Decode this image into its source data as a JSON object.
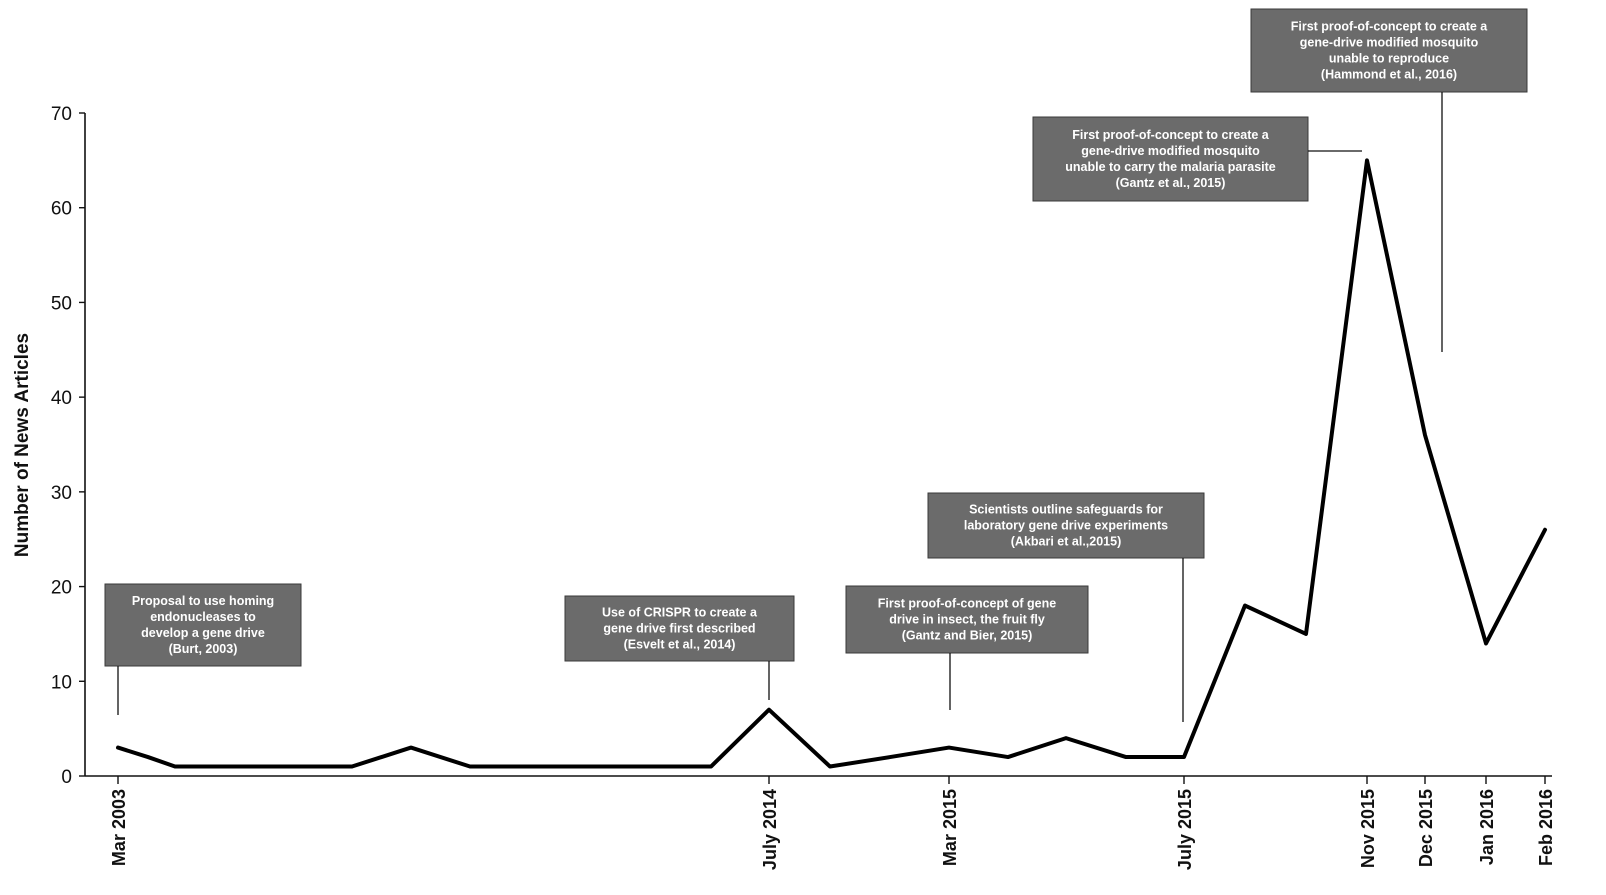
{
  "chart_data": {
    "type": "line",
    "title": "",
    "ylabel": "Number of News Articles",
    "xlabel": "",
    "ylim": [
      0,
      70
    ],
    "yticks": [
      0,
      10,
      20,
      30,
      40,
      50,
      60,
      70
    ],
    "grid": false,
    "series": [
      {
        "color": "#000000",
        "points": [
          {
            "i": 0,
            "y": 3
          },
          {
            "i": 1,
            "y": 2
          },
          {
            "i": 2,
            "y": 1
          },
          {
            "i": 3,
            "y": 1
          },
          {
            "i": 4,
            "y": 1
          },
          {
            "i": 5,
            "y": 1
          },
          {
            "i": 6,
            "y": 1
          },
          {
            "i": 7,
            "y": 3
          },
          {
            "i": 8,
            "y": 1
          },
          {
            "i": 9,
            "y": 1
          },
          {
            "i": 10,
            "y": 1
          },
          {
            "i": 11,
            "y": 1
          },
          {
            "i": 12,
            "y": 1
          },
          {
            "i": 13,
            "y": 7
          },
          {
            "i": 14,
            "y": 1
          },
          {
            "i": 15,
            "y": 2
          },
          {
            "i": 16,
            "y": 3
          },
          {
            "i": 17,
            "y": 2
          },
          {
            "i": 18,
            "y": 4
          },
          {
            "i": 19,
            "y": 2
          },
          {
            "i": 20,
            "y": 2
          },
          {
            "i": 21,
            "y": 18
          },
          {
            "i": 22,
            "y": 15
          },
          {
            "i": 23,
            "y": 65
          },
          {
            "i": 24,
            "y": 36
          },
          {
            "i": 25,
            "y": 14
          },
          {
            "i": 26,
            "y": 26
          }
        ]
      }
    ],
    "x_labels": [
      {
        "i": 0,
        "label": "Mar 2003"
      },
      {
        "i": 13,
        "label": "July 2014"
      },
      {
        "i": 16,
        "label": "Mar 2015"
      },
      {
        "i": 20,
        "label": "July 2015"
      },
      {
        "i": 23,
        "label": "Nov 2015"
      },
      {
        "i": 24,
        "label": "Dec 2015"
      },
      {
        "i": 25,
        "label": "Jan 2016"
      },
      {
        "i": 26,
        "label": "Feb 2016"
      }
    ],
    "annotations": [
      {
        "i": 0,
        "lines": [
          "Proposal to use homing",
          "endonucleases  to",
          "develop a gene drive",
          "(Burt, 2003)"
        ]
      },
      {
        "i": 13,
        "lines": [
          "Use of CRISPR to create  a",
          "gene drive first described",
          "(Esvelt et al., 2014)"
        ]
      },
      {
        "i": 16,
        "lines": [
          "First proof-of-concept of gene",
          "drive in insect,  the fruit fly",
          "(Gantz and Bier, 2015)"
        ]
      },
      {
        "i": 20,
        "lines": [
          "Scientists  outline safeguards  for",
          "laboratory gene drive experiments",
          "(Akbari  et al.,2015)"
        ]
      },
      {
        "i": 23,
        "lines": [
          "First proof-of-concept to create a",
          "gene-drive modified mosquito",
          "unable to carry  the malaria  parasite",
          "(Gantz et al., 2015)"
        ]
      },
      {
        "i": 24,
        "lines": [
          "First proof-of-concept to create a",
          "gene-drive modified mosquito",
          "unable to reproduce",
          "(Hammond et al., 2016)"
        ]
      }
    ]
  }
}
